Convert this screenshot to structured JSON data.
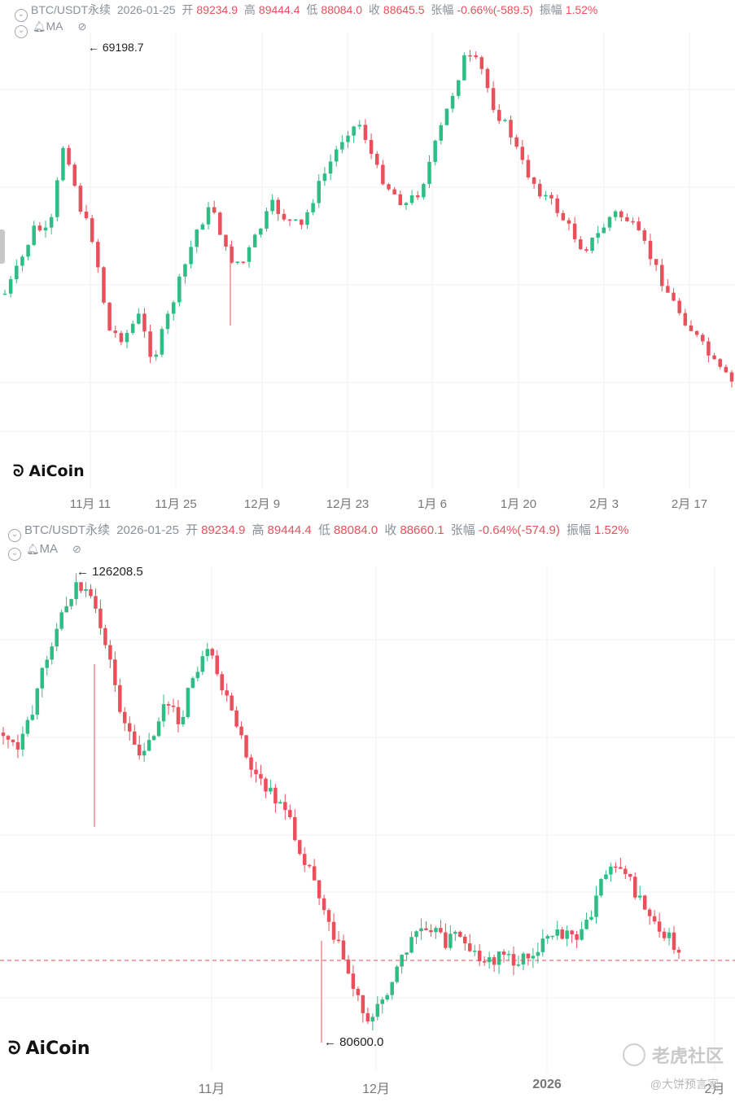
{
  "colors": {
    "up": "#2ebd85",
    "down": "#e8505b",
    "grid": "#eef0f3",
    "label": "#777777"
  },
  "top_panel": {
    "symbol": "BTC/USDT永续",
    "date": "2026-01-25",
    "open_label": "开",
    "open": "89234.9",
    "high_label": "高",
    "high": "89444.4",
    "low_label": "低",
    "low": "88084.0",
    "close_label": "收",
    "close": "88645.5",
    "change_label": "张幅",
    "change": "-0.66%(-589.5)",
    "amp_label": "振幅",
    "amp": "1.52%",
    "indicator": "MA",
    "high_marker": "← 69198.7",
    "logo": "AiCoin",
    "x_labels": [
      "11月 11",
      "11月 25",
      "12月 9",
      "12月 23",
      "1月 6",
      "1月 20",
      "2月 3",
      "2月 17"
    ]
  },
  "bottom_panel": {
    "symbol": "BTC/USDT永续",
    "date": "2026-01-25",
    "open_label": "开",
    "open": "89234.9",
    "high_label": "高",
    "high": "89444.4",
    "low_label": "低",
    "low": "88084.0",
    "close_label": "收",
    "close": "88660.1",
    "change_label": "张幅",
    "change": "-0.64%(-574.9)",
    "amp_label": "振幅",
    "amp": "1.52%",
    "indicator": "MA",
    "high_marker": "← 126208.5",
    "low_marker": "← 80600.0",
    "logo": "AiCoin",
    "x_labels": [
      "11月",
      "12月",
      "2026",
      "2月"
    ]
  },
  "watermark": {
    "brand": "老虎社区",
    "user": "@大饼预言家"
  },
  "chart_data": [
    {
      "type": "candlestick",
      "title": "BTC/USDT永续",
      "categories": [
        "11月 11",
        "11月 25",
        "12月 9",
        "12月 23",
        "1月 6",
        "1月 20",
        "2月 3",
        "2月 17"
      ],
      "annotations": [
        "69198.7"
      ],
      "close_trend": [
        82,
        86,
        91,
        90,
        103,
        94,
        89,
        77,
        76,
        79,
        73,
        79,
        85,
        91,
        94,
        87,
        86,
        90,
        94,
        92,
        91,
        96,
        100,
        104,
        105,
        99,
        96,
        94,
        96,
        102,
        108,
        114,
        113,
        107,
        104,
        99,
        96,
        94,
        91,
        88,
        90,
        93,
        92,
        89,
        85,
        81,
        78,
        75,
        72,
        70
      ]
    },
    {
      "type": "candlestick",
      "title": "BTC/USDT永续",
      "categories": [
        "11月",
        "12月",
        "2026",
        "2月"
      ],
      "annotations": [
        "126208.5",
        "80600.0"
      ],
      "close_trend": [
        110,
        108,
        112,
        118,
        122,
        125,
        123,
        119,
        112,
        108,
        109,
        113,
        111,
        116,
        118,
        114,
        110,
        106,
        104,
        103,
        99,
        96,
        92,
        88,
        84,
        81,
        84,
        87,
        90,
        91,
        89,
        90,
        88,
        87,
        88,
        87,
        88,
        89,
        90,
        89,
        92,
        96,
        97,
        94,
        92,
        90,
        88
      ]
    }
  ]
}
